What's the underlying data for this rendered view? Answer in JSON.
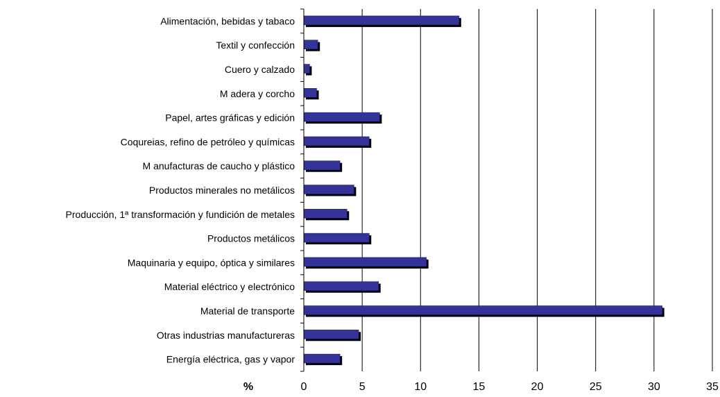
{
  "chart_data": {
    "type": "bar",
    "orientation": "horizontal",
    "categories": [
      "Alimentación, bebidas y tabaco",
      "Textil y confección",
      "Cuero y calzado",
      "M adera y corcho",
      "Papel,  artes gráficas y edición",
      "Coqureias, refino de petróleo y químicas",
      "M anufacturas de caucho y plástico",
      "Productos minerales no metálicos",
      "Producción, 1ª transformación y fundición de metales",
      "Productos  metálicos",
      "Maquinaria y equipo, óptica y similares",
      "Material eléctrico y electrónico",
      "Material de transporte",
      "Otras industrias manufactureras",
      "Energía eléctrica, gas y vapor"
    ],
    "values": [
      13.3,
      1.2,
      0.5,
      1.1,
      6.5,
      5.6,
      3.1,
      4.3,
      3.7,
      5.6,
      10.5,
      6.4,
      30.7,
      4.7,
      3.1
    ],
    "xlabel": "%",
    "xlim": [
      0,
      35
    ],
    "xticks": [
      "0",
      "5",
      "10",
      "15",
      "20",
      "25",
      "30",
      "35"
    ],
    "grid": "vertical",
    "colors": {
      "bar": "#333399",
      "shadow": "#000000",
      "grid": "#000000"
    }
  }
}
